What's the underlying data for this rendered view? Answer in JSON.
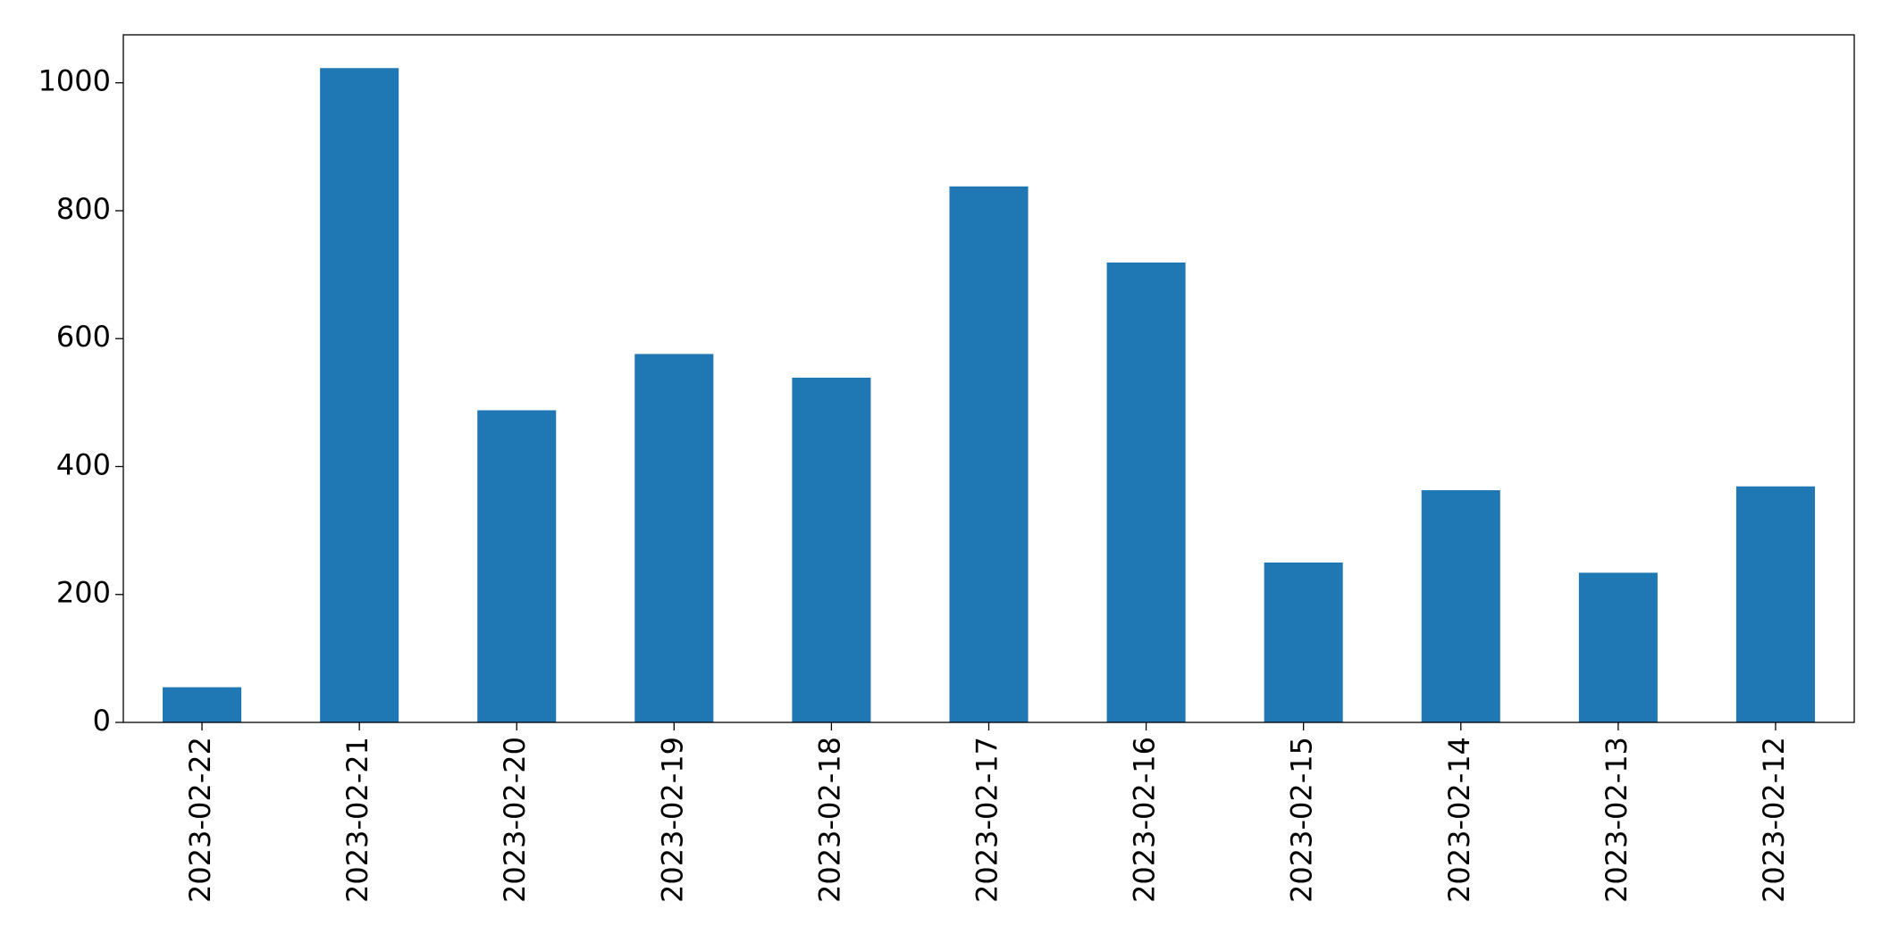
{
  "chart_data": {
    "type": "bar",
    "categories": [
      "2023-02-22",
      "2023-02-21",
      "2023-02-20",
      "2023-02-19",
      "2023-02-18",
      "2023-02-17",
      "2023-02-16",
      "2023-02-15",
      "2023-02-14",
      "2023-02-13",
      "2023-02-12"
    ],
    "values": [
      55,
      1023,
      488,
      576,
      539,
      838,
      719,
      250,
      363,
      234,
      369
    ],
    "color": "#1f77b4",
    "ylim": [
      0,
      1075
    ],
    "yticks": [
      0,
      200,
      400,
      600,
      800,
      1000
    ],
    "grid": false
  }
}
